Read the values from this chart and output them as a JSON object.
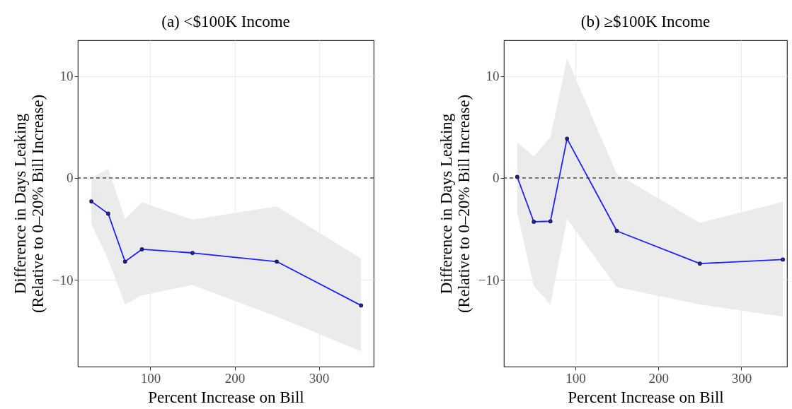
{
  "chart_data": [
    {
      "type": "line",
      "title": "(a) <$100K Income",
      "xlabel": "Percent Increase on Bill",
      "ylabel": "Difference in Days Leaking\n(Relative to 0–20% Bill Increase)",
      "x": [
        30,
        50,
        70,
        90,
        150,
        250,
        350
      ],
      "series": [
        {
          "color": "#1f1fff",
          "values": [
            -2.3,
            -3.5,
            -8.2,
            -7.0,
            -7.35,
            -8.2,
            -12.5
          ],
          "lower": [
            -4.5,
            -8.0,
            -12.4,
            -11.5,
            -10.5,
            -13.6,
            -17.0
          ],
          "upper": [
            0.0,
            0.9,
            -4.0,
            -2.4,
            -4.1,
            -2.8,
            -7.9
          ]
        }
      ],
      "xlim": [
        14,
        365
      ],
      "ylim": [
        -18.5,
        13.5
      ],
      "xticks": [
        100,
        200,
        300
      ],
      "yticks": [
        -10,
        0,
        10
      ],
      "grid": true,
      "marker": "circle",
      "ref_lines": [
        {
          "axis": "y",
          "value": 0,
          "line_style": "dashed"
        }
      ]
    },
    {
      "type": "line",
      "title": "(b) ≥$100K Income",
      "xlabel": "Percent Increase on Bill",
      "ylabel": "Difference in Days Leaking\n(Relative to 0–20% Bill Increase)",
      "x": [
        30,
        50,
        70,
        90,
        150,
        250,
        350
      ],
      "series": [
        {
          "color": "#1f1fff",
          "values": [
            0.1,
            -4.3,
            -4.25,
            3.85,
            -5.2,
            -8.4,
            -8.0
          ],
          "lower": [
            -3.4,
            -10.6,
            -12.4,
            -4.0,
            -10.7,
            -12.4,
            -13.6
          ],
          "upper": [
            3.5,
            2.1,
            4.0,
            11.7,
            0.4,
            -4.4,
            -2.35
          ]
        }
      ],
      "xlim": [
        14,
        355
      ],
      "ylim": [
        -18.5,
        13.5
      ],
      "xticks": [
        100,
        200,
        300
      ],
      "yticks": [
        -10,
        0,
        10
      ],
      "grid": true,
      "marker": "circle",
      "ref_lines": [
        {
          "axis": "y",
          "value": 0,
          "line_style": "dashed"
        }
      ]
    }
  ]
}
